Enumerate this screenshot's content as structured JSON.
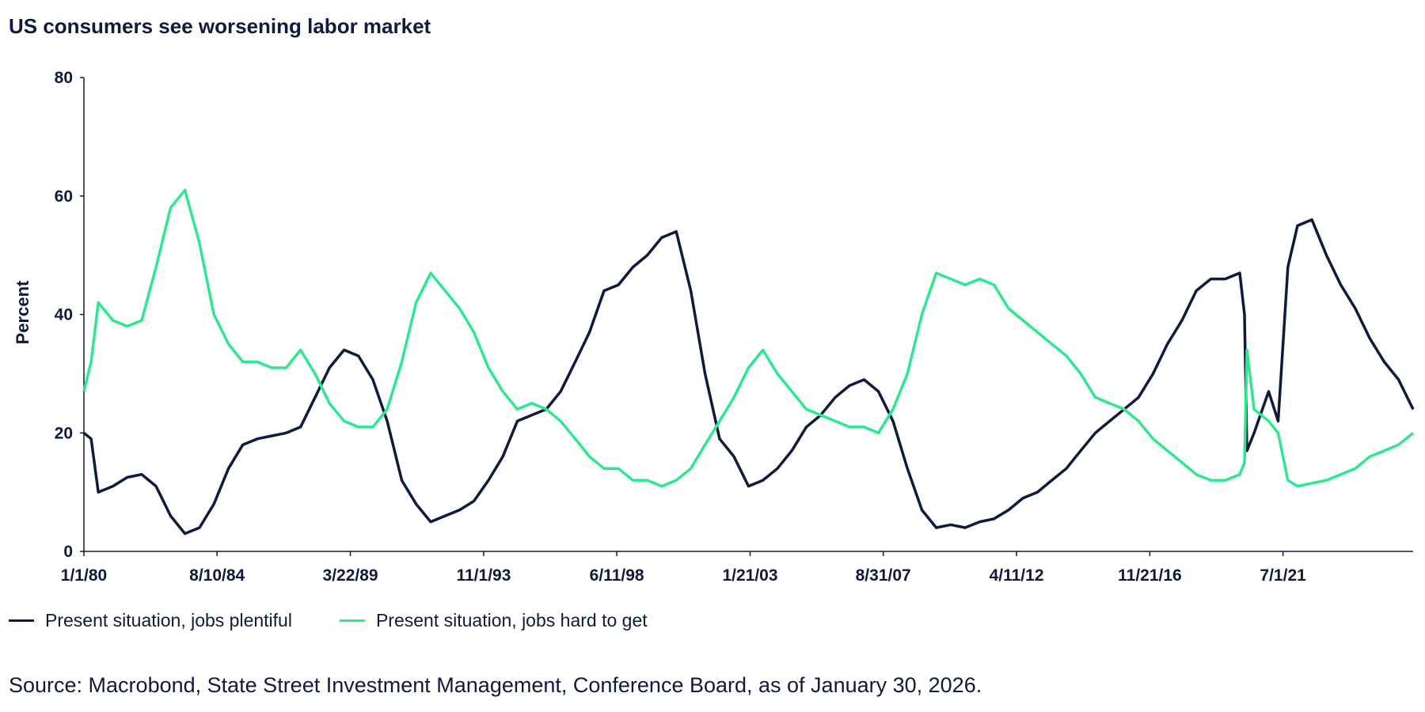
{
  "chart_data": {
    "type": "line",
    "title": "US consumers see worsening labor market",
    "xlabel": "",
    "ylabel": "Percent",
    "ylim": [
      0,
      80
    ],
    "yticks": [
      0,
      20,
      40,
      60,
      80
    ],
    "xlim": [
      "1980-01-01",
      "2026-01-01"
    ],
    "xtick_labels": [
      "1/1/80",
      "8/10/84",
      "3/22/89",
      "11/1/93",
      "6/11/98",
      "1/21/03",
      "8/31/07",
      "4/11/12",
      "11/21/16",
      "7/1/21"
    ],
    "xtick_dates": [
      "1980-01-01",
      "1984-08-10",
      "1989-03-22",
      "1993-11-01",
      "1998-06-11",
      "2003-01-21",
      "2007-08-31",
      "2012-04-11",
      "2016-11-21",
      "2021-07-01"
    ],
    "grid": false,
    "legend_position": "bottom",
    "series": [
      {
        "name": "Present situation, jobs plentiful",
        "color": "#0f1b3d",
        "points": [
          [
            "1980-01-01",
            20
          ],
          [
            "1980-04-01",
            19
          ],
          [
            "1980-07-01",
            10
          ],
          [
            "1981-01-01",
            11
          ],
          [
            "1981-07-01",
            12.5
          ],
          [
            "1982-01-01",
            13
          ],
          [
            "1982-07-01",
            11
          ],
          [
            "1983-01-01",
            6
          ],
          [
            "1983-07-01",
            3
          ],
          [
            "1984-01-01",
            4
          ],
          [
            "1984-07-01",
            8
          ],
          [
            "1985-01-01",
            14
          ],
          [
            "1985-07-01",
            18
          ],
          [
            "1986-01-01",
            19
          ],
          [
            "1986-07-01",
            19.5
          ],
          [
            "1987-01-01",
            20
          ],
          [
            "1987-07-01",
            21
          ],
          [
            "1988-01-01",
            26
          ],
          [
            "1988-07-01",
            31
          ],
          [
            "1989-01-01",
            34
          ],
          [
            "1989-07-01",
            33
          ],
          [
            "1990-01-01",
            29
          ],
          [
            "1990-07-01",
            22
          ],
          [
            "1991-01-01",
            12
          ],
          [
            "1991-07-01",
            8
          ],
          [
            "1992-01-01",
            5
          ],
          [
            "1992-07-01",
            6
          ],
          [
            "1993-01-01",
            7
          ],
          [
            "1993-07-01",
            8.5
          ],
          [
            "1994-01-01",
            12
          ],
          [
            "1994-07-01",
            16
          ],
          [
            "1995-01-01",
            22
          ],
          [
            "1995-07-01",
            23
          ],
          [
            "1996-01-01",
            24
          ],
          [
            "1996-07-01",
            27
          ],
          [
            "1997-01-01",
            32
          ],
          [
            "1997-07-01",
            37
          ],
          [
            "1998-01-01",
            44
          ],
          [
            "1998-07-01",
            45
          ],
          [
            "1999-01-01",
            48
          ],
          [
            "1999-07-01",
            50
          ],
          [
            "2000-01-01",
            53
          ],
          [
            "2000-07-01",
            54
          ],
          [
            "2001-01-01",
            44
          ],
          [
            "2001-07-01",
            30
          ],
          [
            "2002-01-01",
            19
          ],
          [
            "2002-07-01",
            16
          ],
          [
            "2003-01-01",
            11
          ],
          [
            "2003-07-01",
            12
          ],
          [
            "2004-01-01",
            14
          ],
          [
            "2004-07-01",
            17
          ],
          [
            "2005-01-01",
            21
          ],
          [
            "2005-07-01",
            23
          ],
          [
            "2006-01-01",
            26
          ],
          [
            "2006-07-01",
            28
          ],
          [
            "2007-01-01",
            29
          ],
          [
            "2007-07-01",
            27
          ],
          [
            "2008-01-01",
            22
          ],
          [
            "2008-07-01",
            14
          ],
          [
            "2009-01-01",
            7
          ],
          [
            "2009-07-01",
            4
          ],
          [
            "2010-01-01",
            4.5
          ],
          [
            "2010-07-01",
            4
          ],
          [
            "2011-01-01",
            5
          ],
          [
            "2011-07-01",
            5.5
          ],
          [
            "2012-01-01",
            7
          ],
          [
            "2012-07-01",
            9
          ],
          [
            "2013-01-01",
            10
          ],
          [
            "2013-07-01",
            12
          ],
          [
            "2014-01-01",
            14
          ],
          [
            "2014-07-01",
            17
          ],
          [
            "2015-01-01",
            20
          ],
          [
            "2015-07-01",
            22
          ],
          [
            "2016-01-01",
            24
          ],
          [
            "2016-07-01",
            26
          ],
          [
            "2017-01-01",
            30
          ],
          [
            "2017-07-01",
            35
          ],
          [
            "2018-01-01",
            39
          ],
          [
            "2018-07-01",
            44
          ],
          [
            "2019-01-01",
            46
          ],
          [
            "2019-07-01",
            46
          ],
          [
            "2020-01-01",
            47
          ],
          [
            "2020-03-01",
            40
          ],
          [
            "2020-04-01",
            17
          ],
          [
            "2020-07-01",
            20
          ],
          [
            "2021-01-01",
            27
          ],
          [
            "2021-05-01",
            22
          ],
          [
            "2021-09-01",
            48
          ],
          [
            "2022-01-01",
            55
          ],
          [
            "2022-07-01",
            56
          ],
          [
            "2023-01-01",
            50
          ],
          [
            "2023-07-01",
            45
          ],
          [
            "2024-01-01",
            41
          ],
          [
            "2024-07-01",
            36
          ],
          [
            "2025-01-01",
            32
          ],
          [
            "2025-07-01",
            29
          ],
          [
            "2026-01-01",
            24
          ]
        ]
      },
      {
        "name": "Present situation, jobs hard to get",
        "color": "#2ee88f",
        "points": [
          [
            "1980-01-01",
            27
          ],
          [
            "1980-04-01",
            32
          ],
          [
            "1980-07-01",
            42
          ],
          [
            "1981-01-01",
            39
          ],
          [
            "1981-07-01",
            38
          ],
          [
            "1982-01-01",
            39
          ],
          [
            "1982-07-01",
            48
          ],
          [
            "1983-01-01",
            58
          ],
          [
            "1983-07-01",
            61
          ],
          [
            "1984-01-01",
            52
          ],
          [
            "1984-07-01",
            40
          ],
          [
            "1985-01-01",
            35
          ],
          [
            "1985-07-01",
            32
          ],
          [
            "1986-01-01",
            32
          ],
          [
            "1986-07-01",
            31
          ],
          [
            "1987-01-01",
            31
          ],
          [
            "1987-07-01",
            34
          ],
          [
            "1988-01-01",
            30
          ],
          [
            "1988-07-01",
            25
          ],
          [
            "1989-01-01",
            22
          ],
          [
            "1989-07-01",
            21
          ],
          [
            "1990-01-01",
            21
          ],
          [
            "1990-07-01",
            24
          ],
          [
            "1991-01-01",
            32
          ],
          [
            "1991-07-01",
            42
          ],
          [
            "1992-01-01",
            47
          ],
          [
            "1992-07-01",
            44
          ],
          [
            "1993-01-01",
            41
          ],
          [
            "1993-07-01",
            37
          ],
          [
            "1994-01-01",
            31
          ],
          [
            "1994-07-01",
            27
          ],
          [
            "1995-01-01",
            24
          ],
          [
            "1995-07-01",
            25
          ],
          [
            "1996-01-01",
            24
          ],
          [
            "1996-07-01",
            22
          ],
          [
            "1997-01-01",
            19
          ],
          [
            "1997-07-01",
            16
          ],
          [
            "1998-01-01",
            14
          ],
          [
            "1998-07-01",
            14
          ],
          [
            "1999-01-01",
            12
          ],
          [
            "1999-07-01",
            12
          ],
          [
            "2000-01-01",
            11
          ],
          [
            "2000-07-01",
            12
          ],
          [
            "2001-01-01",
            14
          ],
          [
            "2001-07-01",
            18
          ],
          [
            "2002-01-01",
            22
          ],
          [
            "2002-07-01",
            26
          ],
          [
            "2003-01-01",
            31
          ],
          [
            "2003-07-01",
            34
          ],
          [
            "2004-01-01",
            30
          ],
          [
            "2004-07-01",
            27
          ],
          [
            "2005-01-01",
            24
          ],
          [
            "2005-07-01",
            23
          ],
          [
            "2006-01-01",
            22
          ],
          [
            "2006-07-01",
            21
          ],
          [
            "2007-01-01",
            21
          ],
          [
            "2007-07-01",
            20
          ],
          [
            "2008-01-01",
            24
          ],
          [
            "2008-07-01",
            30
          ],
          [
            "2009-01-01",
            40
          ],
          [
            "2009-07-01",
            47
          ],
          [
            "2010-01-01",
            46
          ],
          [
            "2010-07-01",
            45
          ],
          [
            "2011-01-01",
            46
          ],
          [
            "2011-07-01",
            45
          ],
          [
            "2012-01-01",
            41
          ],
          [
            "2012-07-01",
            39
          ],
          [
            "2013-01-01",
            37
          ],
          [
            "2013-07-01",
            35
          ],
          [
            "2014-01-01",
            33
          ],
          [
            "2014-07-01",
            30
          ],
          [
            "2015-01-01",
            26
          ],
          [
            "2015-07-01",
            25
          ],
          [
            "2016-01-01",
            24
          ],
          [
            "2016-07-01",
            22
          ],
          [
            "2017-01-01",
            19
          ],
          [
            "2017-07-01",
            17
          ],
          [
            "2018-01-01",
            15
          ],
          [
            "2018-07-01",
            13
          ],
          [
            "2019-01-01",
            12
          ],
          [
            "2019-07-01",
            12
          ],
          [
            "2020-01-01",
            13
          ],
          [
            "2020-03-01",
            15
          ],
          [
            "2020-04-01",
            34
          ],
          [
            "2020-07-01",
            24
          ],
          [
            "2021-01-01",
            22
          ],
          [
            "2021-05-01",
            20
          ],
          [
            "2021-09-01",
            12
          ],
          [
            "2022-01-01",
            11
          ],
          [
            "2022-07-01",
            11.5
          ],
          [
            "2023-01-01",
            12
          ],
          [
            "2023-07-01",
            13
          ],
          [
            "2024-01-01",
            14
          ],
          [
            "2024-07-01",
            16
          ],
          [
            "2025-01-01",
            17
          ],
          [
            "2025-07-01",
            18
          ],
          [
            "2026-01-01",
            20
          ]
        ]
      }
    ]
  },
  "source": "Source: Macrobond, State Street Investment Management, Conference Board, as of January 30, 2026."
}
